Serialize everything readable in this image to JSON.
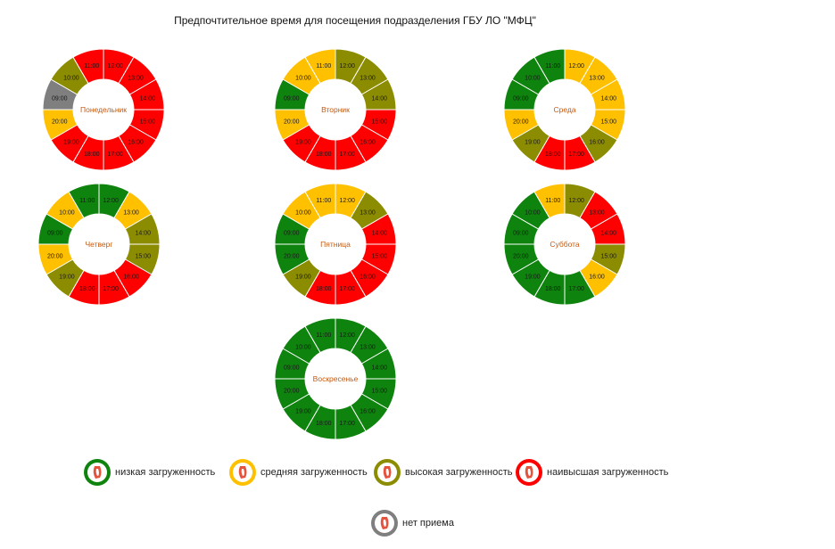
{
  "title": "Предпочтительное время для посещения подразделения ГБУ ЛО \"МФЦ\"",
  "status_colors": {
    "low": "#0E830E",
    "medium": "#FFC000",
    "high": "#8C8C00",
    "highest": "#FF0000",
    "closed": "#7F7F7F"
  },
  "legend": [
    {
      "key": "low",
      "label": "низкая загруженность"
    },
    {
      "key": "medium",
      "label": "средняя загруженность"
    },
    {
      "key": "high",
      "label": "высокая загруженность"
    },
    {
      "key": "highest",
      "label": "наивысшая загруженность"
    },
    {
      "key": "closed",
      "label": "нет приема"
    }
  ],
  "chart_data": [
    {
      "type": "pie",
      "center_label": "Понедельник",
      "hours": [
        "12:00",
        "13:00",
        "14:00",
        "15:00",
        "16:00",
        "17:00",
        "18:00",
        "19:00",
        "20:00",
        "09:00",
        "10:00",
        "11:00"
      ],
      "status": [
        "highest",
        "highest",
        "highest",
        "highest",
        "highest",
        "highest",
        "highest",
        "highest",
        "medium",
        "closed",
        "high",
        "highest"
      ]
    },
    {
      "type": "pie",
      "center_label": "Вторник",
      "hours": [
        "12:00",
        "13:00",
        "14:00",
        "15:00",
        "16:00",
        "17:00",
        "18:00",
        "19:00",
        "20:00",
        "09:00",
        "10:00",
        "11:00"
      ],
      "status": [
        "high",
        "high",
        "high",
        "highest",
        "highest",
        "highest",
        "highest",
        "highest",
        "medium",
        "low",
        "medium",
        "medium"
      ]
    },
    {
      "type": "pie",
      "center_label": "Среда",
      "hours": [
        "12:00",
        "13:00",
        "14:00",
        "15:00",
        "16:00",
        "17:00",
        "18:00",
        "19:00",
        "20:00",
        "09:00",
        "10:00",
        "11:00"
      ],
      "status": [
        "medium",
        "medium",
        "medium",
        "medium",
        "high",
        "highest",
        "highest",
        "high",
        "medium",
        "low",
        "low",
        "low"
      ]
    },
    {
      "type": "pie",
      "center_label": "Четверг",
      "hours": [
        "12:00",
        "13:00",
        "14:00",
        "15:00",
        "16:00",
        "17:00",
        "18:00",
        "19:00",
        "20:00",
        "09:00",
        "10:00",
        "11:00"
      ],
      "status": [
        "low",
        "medium",
        "high",
        "high",
        "highest",
        "highest",
        "highest",
        "high",
        "medium",
        "low",
        "medium",
        "low"
      ]
    },
    {
      "type": "pie",
      "center_label": "Пятница",
      "hours": [
        "12:00",
        "13:00",
        "14:00",
        "15:00",
        "16:00",
        "17:00",
        "18:00",
        "19:00",
        "20:00",
        "09:00",
        "10:00",
        "11:00"
      ],
      "status": [
        "medium",
        "high",
        "highest",
        "highest",
        "highest",
        "highest",
        "highest",
        "high",
        "low",
        "low",
        "medium",
        "medium"
      ]
    },
    {
      "type": "pie",
      "center_label": "Суббота",
      "hours": [
        "12:00",
        "13:00",
        "14:00",
        "15:00",
        "16:00",
        "17:00",
        "18:00",
        "19:00",
        "20:00",
        "09:00",
        "10:00",
        "11:00"
      ],
      "status": [
        "high",
        "highest",
        "highest",
        "high",
        "medium",
        "low",
        "low",
        "low",
        "low",
        "low",
        "low",
        "medium"
      ]
    },
    {
      "type": "pie",
      "center_label": "Воскресенье",
      "hours": [
        "12:00",
        "13:00",
        "14:00",
        "15:00",
        "16:00",
        "17:00",
        "18:00",
        "19:00",
        "20:00",
        "09:00",
        "10:00",
        "11:00"
      ],
      "status": [
        "low",
        "low",
        "low",
        "low",
        "low",
        "low",
        "low",
        "low",
        "low",
        "low",
        "low",
        "low"
      ]
    }
  ]
}
